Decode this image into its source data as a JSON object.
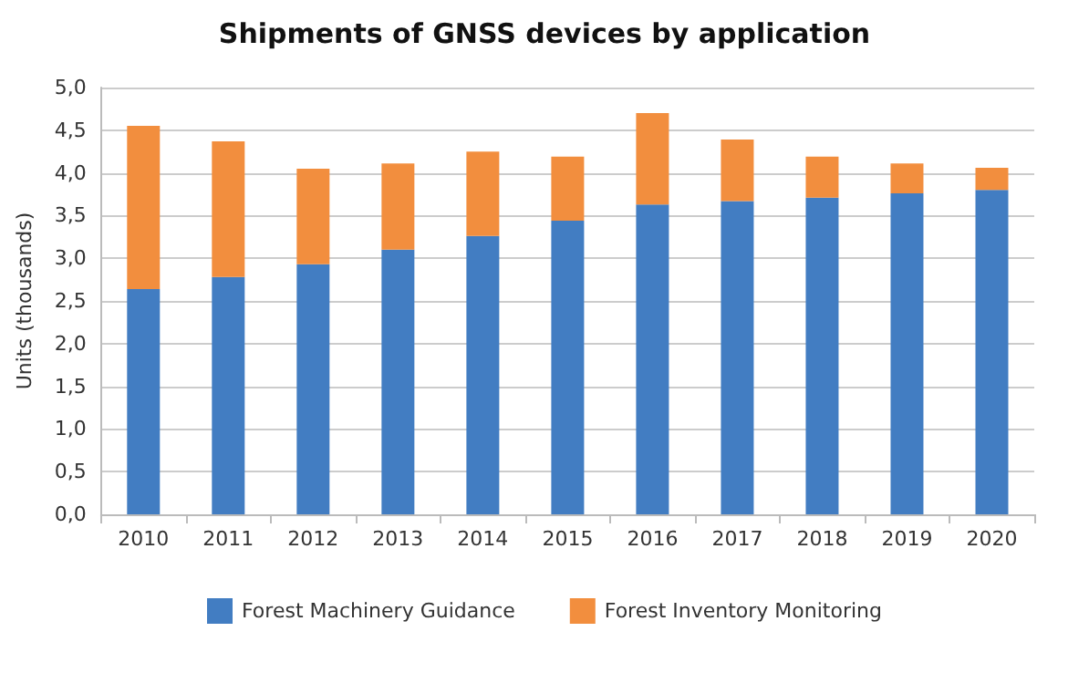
{
  "chart_data": {
    "type": "bar",
    "title": "Shipments of GNSS devices by application",
    "ylabel": "Units (thousands)",
    "categories": [
      "2010",
      "2011",
      "2012",
      "2013",
      "2014",
      "2015",
      "2016",
      "2017",
      "2018",
      "2019",
      "2020"
    ],
    "stacked": true,
    "series": [
      {
        "name": "Forest Machinery Guidance",
        "color": "#427dc2",
        "values": [
          2.64,
          2.78,
          2.93,
          3.1,
          3.26,
          3.44,
          3.63,
          3.67,
          3.71,
          3.76,
          3.8
        ]
      },
      {
        "name": "Forest Inventory Monitoring",
        "color": "#f28e3e",
        "values": [
          1.91,
          1.59,
          1.12,
          1.01,
          0.99,
          0.75,
          1.07,
          0.72,
          0.48,
          0.35,
          0.26
        ]
      }
    ],
    "ylim": [
      0,
      5
    ],
    "yticks": [
      {
        "value": 0,
        "label": "0,0"
      },
      {
        "value": 0.5,
        "label": "0,5"
      },
      {
        "value": 1,
        "label": "1,0"
      },
      {
        "value": 1.5,
        "label": "1,5"
      },
      {
        "value": 2,
        "label": "2,0"
      },
      {
        "value": 2.5,
        "label": "2,5"
      },
      {
        "value": 3,
        "label": "3,0"
      },
      {
        "value": 3.5,
        "label": "3,5"
      },
      {
        "value": 4,
        "label": "4,0"
      },
      {
        "value": 4.5,
        "label": "4,5"
      },
      {
        "value": 5,
        "label": "5,0"
      }
    ],
    "grid": "y",
    "legend": "bottom"
  }
}
